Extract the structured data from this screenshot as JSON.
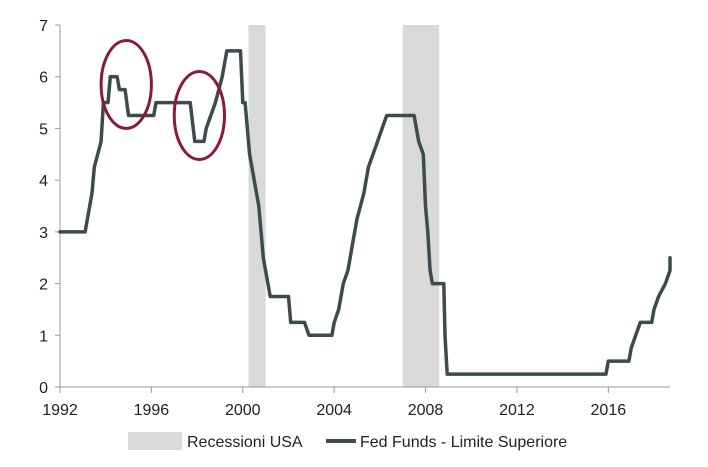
{
  "chart_data": {
    "type": "line",
    "x_ticks": [
      "1992",
      "1996",
      "2000",
      "2004",
      "2008",
      "2012",
      "2016"
    ],
    "y_ticks": [
      "0",
      "1",
      "2",
      "3",
      "4",
      "5",
      "6",
      "7"
    ],
    "xlim": [
      1992,
      2018.7
    ],
    "ylim": [
      0,
      7
    ],
    "grid": false,
    "legend_position": "bottom",
    "recessions": {
      "name": "Recessioni USA",
      "color": "#d9d9d9",
      "periods": [
        [
          2000.25,
          2001.0
        ],
        [
          2007.0,
          2008.6
        ]
      ]
    },
    "series": [
      {
        "name": "Fed Funds - Limite Superiore",
        "color": "#3d4b4f",
        "points": [
          [
            1992.0,
            3.0
          ],
          [
            1993.1,
            3.0
          ],
          [
            1993.4,
            3.75
          ],
          [
            1993.5,
            4.25
          ],
          [
            1993.8,
            4.75
          ],
          [
            1993.9,
            5.5
          ],
          [
            1994.1,
            5.5
          ],
          [
            1994.2,
            6.0
          ],
          [
            1994.5,
            6.0
          ],
          [
            1994.6,
            5.75
          ],
          [
            1994.85,
            5.75
          ],
          [
            1995.0,
            5.25
          ],
          [
            1996.1,
            5.25
          ],
          [
            1996.2,
            5.5
          ],
          [
            1997.7,
            5.5
          ],
          [
            1997.9,
            4.75
          ],
          [
            1998.3,
            4.75
          ],
          [
            1998.4,
            5.0
          ],
          [
            1998.6,
            5.25
          ],
          [
            1998.8,
            5.5
          ],
          [
            1999.1,
            6.0
          ],
          [
            1999.3,
            6.5
          ],
          [
            1999.9,
            6.5
          ],
          [
            2000.0,
            5.5
          ],
          [
            2000.1,
            5.5
          ],
          [
            2000.3,
            4.5
          ],
          [
            2000.6,
            3.75
          ],
          [
            2000.7,
            3.5
          ],
          [
            2000.9,
            2.5
          ],
          [
            2001.1,
            2.0
          ],
          [
            2001.2,
            1.75
          ],
          [
            2002.0,
            1.75
          ],
          [
            2002.1,
            1.25
          ],
          [
            2002.7,
            1.25
          ],
          [
            2002.9,
            1.0
          ],
          [
            2003.9,
            1.0
          ],
          [
            2004.0,
            1.25
          ],
          [
            2004.2,
            1.5
          ],
          [
            2004.4,
            2.0
          ],
          [
            2004.6,
            2.25
          ],
          [
            2004.8,
            2.75
          ],
          [
            2005.0,
            3.25
          ],
          [
            2005.3,
            3.75
          ],
          [
            2005.5,
            4.25
          ],
          [
            2005.7,
            4.5
          ],
          [
            2005.9,
            4.75
          ],
          [
            2006.1,
            5.0
          ],
          [
            2006.3,
            5.25
          ],
          [
            2007.5,
            5.25
          ],
          [
            2007.7,
            4.75
          ],
          [
            2007.9,
            4.5
          ],
          [
            2008.0,
            3.5
          ],
          [
            2008.1,
            3.0
          ],
          [
            2008.2,
            2.25
          ],
          [
            2008.3,
            2.0
          ],
          [
            2008.8,
            2.0
          ],
          [
            2008.85,
            1.0
          ],
          [
            2008.95,
            0.25
          ],
          [
            2015.9,
            0.25
          ],
          [
            2016.0,
            0.5
          ],
          [
            2016.9,
            0.5
          ],
          [
            2017.0,
            0.75
          ],
          [
            2017.2,
            1.0
          ],
          [
            2017.4,
            1.25
          ],
          [
            2017.9,
            1.25
          ],
          [
            2018.0,
            1.5
          ],
          [
            2018.2,
            1.75
          ],
          [
            2018.5,
            2.0
          ],
          [
            2018.7,
            2.25
          ],
          [
            2018.9,
            2.5
          ],
          [
            2019.4,
            2.5
          ],
          [
            2019.5,
            2.25
          ]
        ]
      }
    ],
    "annotations": [
      {
        "shape": "ellipse",
        "color": "#8b1a3a",
        "center": [
          1994.9,
          5.85
        ],
        "radius_years": 1.1,
        "radius_value": 0.85
      },
      {
        "shape": "ellipse",
        "color": "#8b1a3a",
        "center": [
          1998.1,
          5.25
        ],
        "radius_years": 1.1,
        "radius_value": 0.85
      }
    ]
  }
}
